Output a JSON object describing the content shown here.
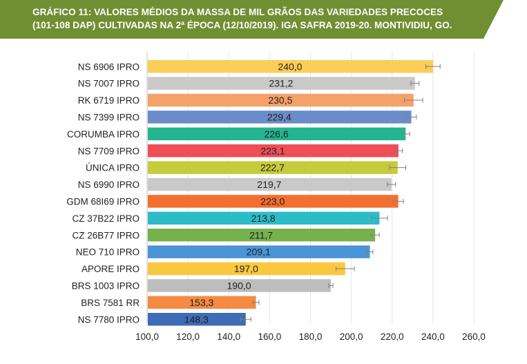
{
  "header": {
    "title_line1": "GRÁFICO 11: VALORES MÉDIOS DA MASSA DE MIL GRÃOS DAS VARIEDADES PRECOCES",
    "title_line2": "(101-108 DAP) CULTIVADAS NA 2ª ÉPOCA (12/10/2019). IGA SAFRA 2019-20. MONTIVIDIU, GO.",
    "band_color": "#6f8f32"
  },
  "chart_data": {
    "type": "bar",
    "orientation": "horizontal",
    "title": "GRÁFICO 11: VALORES MÉDIOS DA MASSA DE MIL GRÃOS DAS VARIEDADES PRECOCES (101-108 DAP) CULTIVADAS NA 2ª ÉPOCA (12/10/2019). IGA SAFRA 2019-20. MONTIVIDIU, GO.",
    "xlabel": "",
    "ylabel": "",
    "xlim": [
      100,
      260
    ],
    "ticks": [
      100,
      120,
      140,
      160,
      180,
      200,
      220,
      240,
      260
    ],
    "tick_labels": [
      "100,0",
      "120,0",
      "140,0",
      "160,0",
      "180,0",
      "200,0",
      "220,0",
      "240,0",
      "260,0"
    ],
    "grid": true,
    "categories": [
      "NS 6906 IPRO",
      "NS 7007 IPRO",
      "RK 6719 IPRO",
      "NS 7399 IPRO",
      "CORUMBA IPRO",
      "NS 7709 IPRO",
      "ÚNICA IPRO",
      "NS 6990 IPRO",
      "GDM 68I69 IPRO",
      "CZ 37B22 IPRO",
      "CZ 26B77 IPRO",
      "NEO 710 IPRO",
      "APORE IPRO",
      "BRS 1003 IPRO",
      "BRS 7581 RR",
      "NS 7780 IPRO"
    ],
    "values": [
      240.0,
      231.2,
      230.5,
      229.4,
      226.6,
      223.1,
      222.7,
      219.7,
      223.0,
      213.8,
      211.7,
      209.1,
      197.0,
      190.0,
      153.3,
      148.3
    ],
    "value_labels": [
      "240,0",
      "231,2",
      "230,5",
      "229,4",
      "226,6",
      "223,1",
      "222,7",
      "219,7",
      "223,0",
      "213,8",
      "211,7",
      "209,1",
      "197,0",
      "190,0",
      "153,3",
      "148,3"
    ],
    "errors": [
      3.5,
      2.0,
      4.5,
      2.5,
      2.0,
      2.0,
      4.0,
      2.0,
      2.5,
      4.0,
      2.0,
      1.5,
      4.5,
      1.0,
      1.5,
      2.5
    ],
    "colors": [
      "#fccd57",
      "#c9c9c9",
      "#f6a06a",
      "#6b8cca",
      "#23b58f",
      "#ef4e56",
      "#c5cb3a",
      "#c9c9c9",
      "#f26f30",
      "#2cbcc7",
      "#75b24d",
      "#4a94d8",
      "#fbc73f",
      "#bdbdbd",
      "#f58a43",
      "#3f6cb6"
    ]
  }
}
